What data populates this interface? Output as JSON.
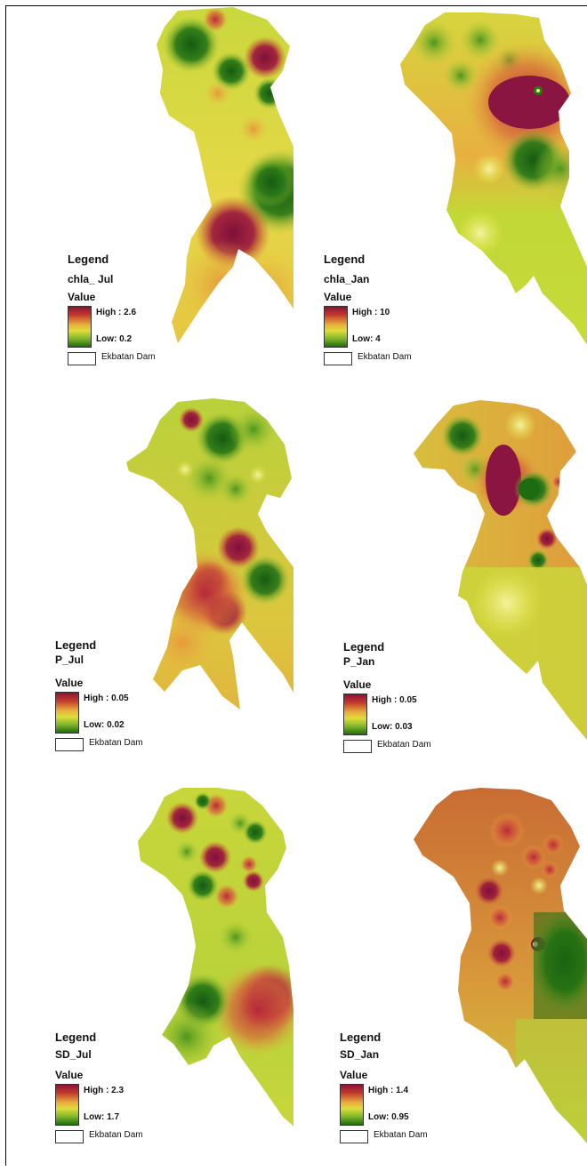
{
  "panels": [
    {
      "legend_title": "Legend",
      "layer": "chla_ Jul",
      "value_label": "Value",
      "high_label": "High : 2.6",
      "low_label": "Low: 0.2",
      "boundary_label": "Ekbatan Dam"
    },
    {
      "legend_title": "Legend",
      "layer": "chla_Jan",
      "value_label": "Value",
      "high_label": "High : 10",
      "low_label": "Low: 4",
      "boundary_label": "Ekbatan Dam"
    },
    {
      "legend_title": "Legend",
      "layer": "P_Jul",
      "value_label": "Value",
      "high_label": "High : 0.05",
      "low_label": "Low: 0.02",
      "boundary_label": "Ekbatan Dam"
    },
    {
      "legend_title": "Legend",
      "layer": "P_Jan",
      "value_label": "Value",
      "high_label": "High : 0.05",
      "low_label": "Low: 0.03",
      "boundary_label": "Ekbatan Dam"
    },
    {
      "legend_title": "Legend",
      "layer": "SD_Jul",
      "value_label": "Value",
      "high_label": "High : 2.3",
      "low_label": "Low: 1.7",
      "boundary_label": "Ekbatan Dam"
    },
    {
      "legend_title": "Legend",
      "layer": "SD_Jan",
      "value_label": "Value",
      "high_label": "High : 1.4",
      "low_label": "Low: 0.95",
      "boundary_label": "Ekbatan Dam"
    }
  ],
  "colors": {
    "high": "#8c1239",
    "mid_high": "#e8ae3c",
    "mid": "#dede3c",
    "low": "#1f6b10"
  }
}
